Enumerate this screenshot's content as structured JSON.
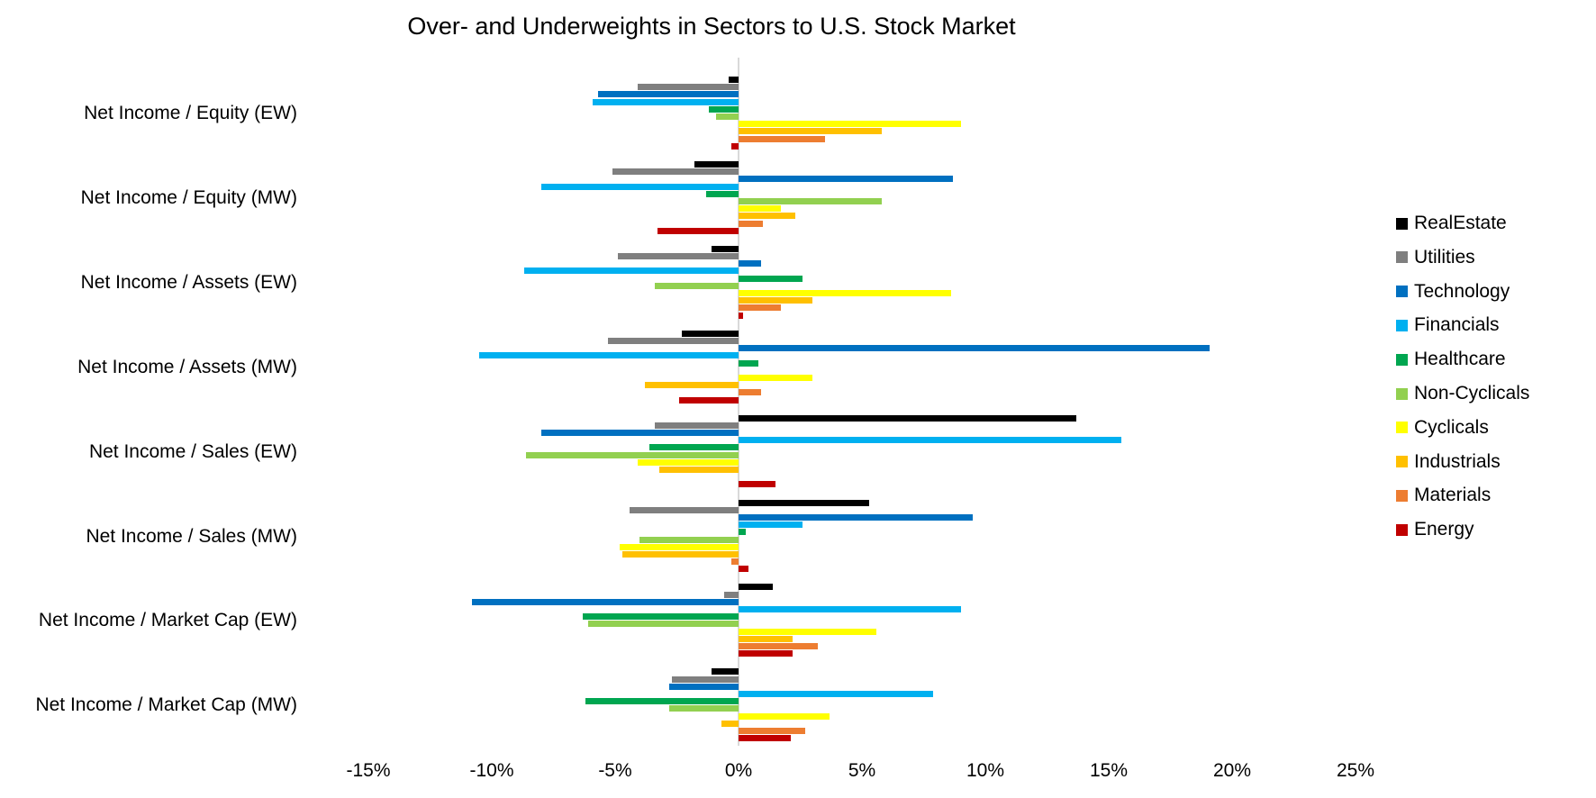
{
  "title": "Over- and Underweights in Sectors to U.S. Stock Market",
  "chart_data": {
    "type": "bar",
    "orientation": "horizontal",
    "title": "Over- and Underweights in Sectors to U.S. Stock Market",
    "xlabel": "",
    "ylabel": "",
    "grid": false,
    "legend_position": "right",
    "xlim": [
      -17.5,
      26
    ],
    "x_ticks": [
      -15,
      -10,
      -5,
      0,
      5,
      10,
      15,
      20,
      25
    ],
    "x_tick_labels": [
      "-15%",
      "-10%",
      "-5%",
      "0%",
      "5%",
      "10%",
      "15%",
      "20%",
      "25%"
    ],
    "value_unit": "percent",
    "categories": [
      "Net Income / Equity (EW)",
      "Net Income / Equity (MW)",
      "Net Income / Assets (EW)",
      "Net Income / Assets (MW)",
      "Net Income / Sales (EW)",
      "Net Income / Sales (MW)",
      "Net Income / Market Cap (EW)",
      "Net Income / Market Cap (MW)"
    ],
    "series": [
      {
        "name": "RealEstate",
        "color": "#000000",
        "values": [
          -0.4,
          -1.8,
          -1.1,
          -2.3,
          13.7,
          5.3,
          1.4,
          -1.1
        ]
      },
      {
        "name": "Utilities",
        "color": "#7F7F7F",
        "values": [
          -4.1,
          -5.1,
          -4.9,
          -5.3,
          -3.4,
          -4.4,
          -0.6,
          -2.7
        ]
      },
      {
        "name": "Technology",
        "color": "#0070C0",
        "values": [
          -5.7,
          8.7,
          0.9,
          19.1,
          -8.0,
          9.5,
          -10.8,
          -2.8
        ]
      },
      {
        "name": "Financials",
        "color": "#00B0F0",
        "values": [
          -5.9,
          -8.0,
          -8.7,
          -10.5,
          15.5,
          2.6,
          9.0,
          7.9
        ]
      },
      {
        "name": "Healthcare",
        "color": "#00A650",
        "values": [
          -1.2,
          -1.3,
          2.6,
          0.8,
          -3.6,
          0.3,
          -6.3,
          -6.2
        ]
      },
      {
        "name": "Non-Cyclicals",
        "color": "#92D050",
        "values": [
          -0.9,
          5.8,
          -3.4,
          0.0,
          -8.6,
          -4.0,
          -6.1,
          -2.8
        ]
      },
      {
        "name": "Cyclicals",
        "color": "#FFFF00",
        "values": [
          9.0,
          1.7,
          8.6,
          3.0,
          -4.1,
          -4.8,
          5.6,
          3.7
        ]
      },
      {
        "name": "Industrials",
        "color": "#FFC000",
        "values": [
          5.8,
          2.3,
          3.0,
          -3.8,
          -3.2,
          -4.7,
          2.2,
          -0.7
        ]
      },
      {
        "name": "Materials",
        "color": "#ED7D31",
        "values": [
          3.5,
          1.0,
          1.7,
          0.9,
          0.0,
          -0.3,
          3.2,
          2.7
        ]
      },
      {
        "name": "Energy",
        "color": "#C00000",
        "values": [
          -0.3,
          -3.3,
          0.2,
          -2.4,
          1.5,
          0.4,
          2.2,
          2.1
        ]
      }
    ]
  }
}
